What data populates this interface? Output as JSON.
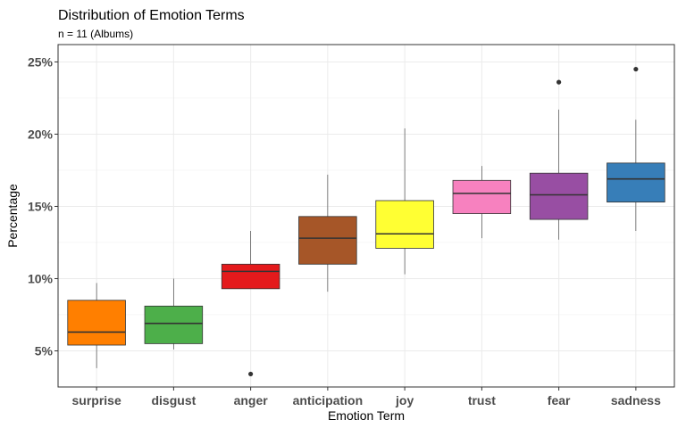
{
  "chart_data": {
    "type": "boxplot",
    "title": "Distribution of Emotion Terms",
    "subtitle": "n = 11 (Albums)",
    "xlabel": "Emotion Term",
    "ylabel": "Percentage",
    "ylim": [
      2.5,
      26.2
    ],
    "y_ticks": [
      5,
      10,
      15,
      20,
      25
    ],
    "y_tick_labels": [
      "5%",
      "10%",
      "15%",
      "20%",
      "25%"
    ],
    "grid": true,
    "legend": "none",
    "categories": [
      "surprise",
      "disgust",
      "anger",
      "anticipation",
      "joy",
      "trust",
      "fear",
      "sadness"
    ],
    "boxes": [
      {
        "category": "surprise",
        "color": "#FF7F00",
        "min": 3.8,
        "q1": 5.4,
        "median": 6.3,
        "q3": 8.5,
        "max": 9.7,
        "outliers": []
      },
      {
        "category": "disgust",
        "color": "#4DAF4A",
        "min": 5.1,
        "q1": 5.5,
        "median": 6.9,
        "q3": 8.1,
        "max": 10.0,
        "outliers": []
      },
      {
        "category": "anger",
        "color": "#E41A1C",
        "min": 9.3,
        "q1": 9.3,
        "median": 10.5,
        "q3": 11.0,
        "max": 13.3,
        "outliers": [
          3.4
        ]
      },
      {
        "category": "anticipation",
        "color": "#A65628",
        "min": 9.1,
        "q1": 11.0,
        "median": 12.8,
        "q3": 14.3,
        "max": 17.2,
        "outliers": []
      },
      {
        "category": "joy",
        "color": "#FFFF33",
        "min": 10.3,
        "q1": 12.1,
        "median": 13.1,
        "q3": 15.4,
        "max": 20.4,
        "outliers": []
      },
      {
        "category": "trust",
        "color": "#F781BF",
        "min": 12.8,
        "q1": 14.5,
        "median": 15.9,
        "q3": 16.8,
        "max": 17.8,
        "outliers": []
      },
      {
        "category": "fear",
        "color": "#984EA3",
        "min": 12.7,
        "q1": 14.1,
        "median": 15.8,
        "q3": 17.3,
        "max": 21.7,
        "outliers": [
          23.6
        ]
      },
      {
        "category": "sadness",
        "color": "#377EB8",
        "min": 13.3,
        "q1": 15.3,
        "median": 16.9,
        "q3": 18.0,
        "max": 21.0,
        "outliers": [
          24.5
        ]
      }
    ]
  }
}
